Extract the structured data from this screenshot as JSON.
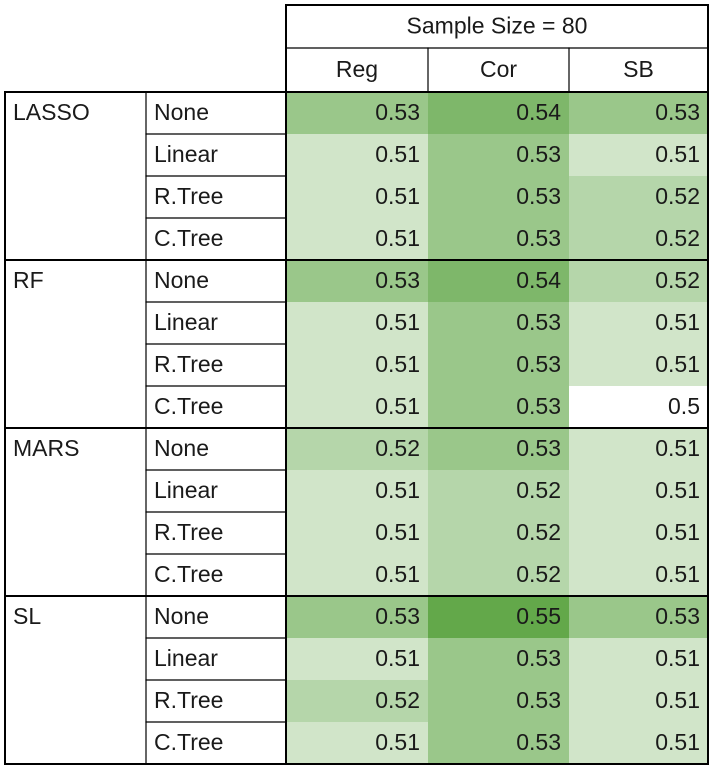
{
  "chart_data": {
    "type": "heatmap",
    "title": "Sample Size = 80",
    "columns": [
      "Reg",
      "Cor",
      "SB"
    ],
    "color_scale": {
      "low": "#ffffff",
      "high": "#63a84a"
    },
    "groups": [
      {
        "name": "LASSO",
        "rows": [
          {
            "label": "None",
            "values": [
              "0.53",
              "0.54",
              "0.53"
            ]
          },
          {
            "label": "Linear",
            "values": [
              "0.51",
              "0.53",
              "0.51"
            ]
          },
          {
            "label": "R.Tree",
            "values": [
              "0.51",
              "0.53",
              "0.52"
            ]
          },
          {
            "label": "C.Tree",
            "values": [
              "0.51",
              "0.53",
              "0.52"
            ]
          }
        ]
      },
      {
        "name": "RF",
        "rows": [
          {
            "label": "None",
            "values": [
              "0.53",
              "0.54",
              "0.52"
            ]
          },
          {
            "label": "Linear",
            "values": [
              "0.51",
              "0.53",
              "0.51"
            ]
          },
          {
            "label": "R.Tree",
            "values": [
              "0.51",
              "0.53",
              "0.51"
            ]
          },
          {
            "label": "C.Tree",
            "values": [
              "0.51",
              "0.53",
              "0.5"
            ]
          }
        ]
      },
      {
        "name": "MARS",
        "rows": [
          {
            "label": "None",
            "values": [
              "0.52",
              "0.53",
              "0.51"
            ]
          },
          {
            "label": "Linear",
            "values": [
              "0.51",
              "0.52",
              "0.51"
            ]
          },
          {
            "label": "R.Tree",
            "values": [
              "0.51",
              "0.52",
              "0.51"
            ]
          },
          {
            "label": "C.Tree",
            "values": [
              "0.51",
              "0.52",
              "0.51"
            ]
          }
        ]
      },
      {
        "name": "SL",
        "rows": [
          {
            "label": "None",
            "values": [
              "0.53",
              "0.55",
              "0.53"
            ]
          },
          {
            "label": "Linear",
            "values": [
              "0.51",
              "0.53",
              "0.51"
            ]
          },
          {
            "label": "R.Tree",
            "values": [
              "0.52",
              "0.53",
              "0.51"
            ]
          },
          {
            "label": "C.Tree",
            "values": [
              "0.51",
              "0.53",
              "0.51"
            ]
          }
        ]
      }
    ]
  }
}
